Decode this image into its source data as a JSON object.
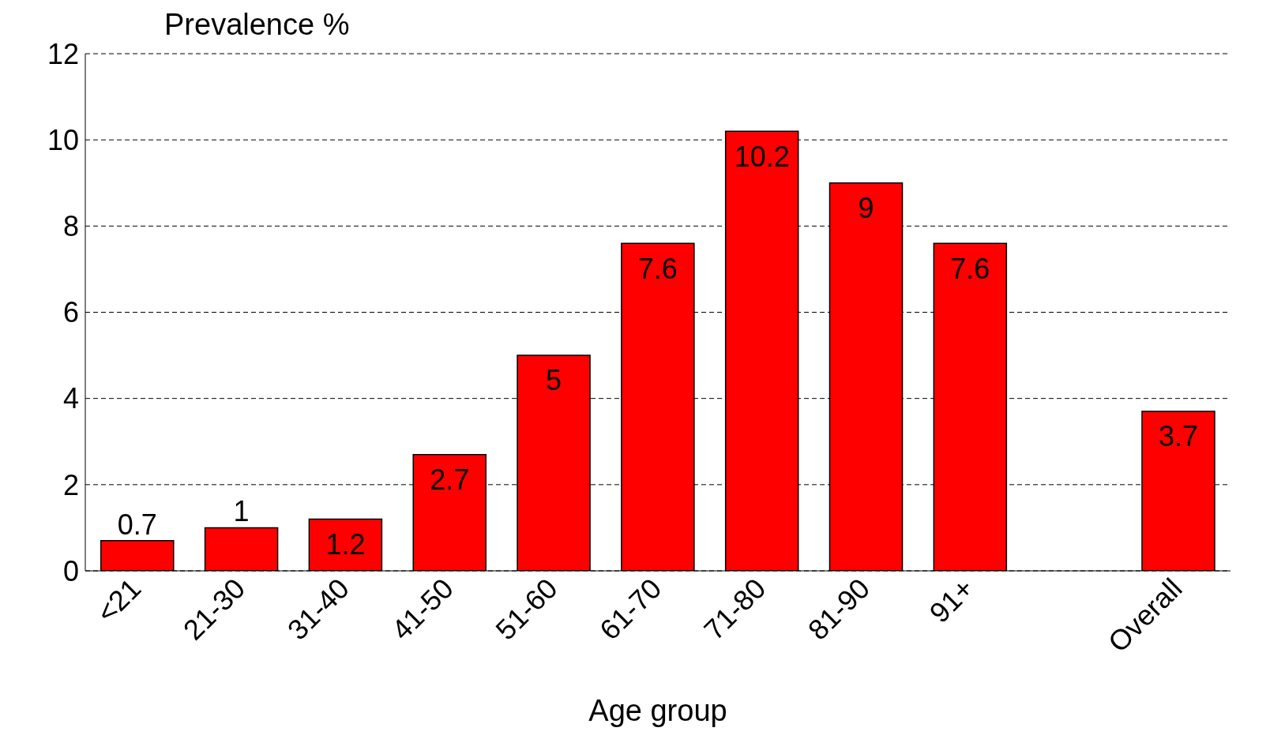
{
  "chart_data": {
    "type": "bar",
    "ylabel": "Prevalence %",
    "xlabel": "Age group",
    "categories": [
      "<21",
      "21-30",
      "31-40",
      "41-50",
      "51-60",
      "61-70",
      "71-80",
      "81-90",
      "91+",
      null,
      "Overall"
    ],
    "values": [
      0.7,
      1,
      1.2,
      2.7,
      5,
      7.6,
      10.2,
      9,
      7.6,
      null,
      3.7
    ],
    "color": "#ff0000",
    "ylim": [
      0,
      12
    ],
    "yticks": [
      0,
      2,
      4,
      6,
      8,
      10,
      12
    ],
    "grid": "y",
    "data_labels": true
  }
}
